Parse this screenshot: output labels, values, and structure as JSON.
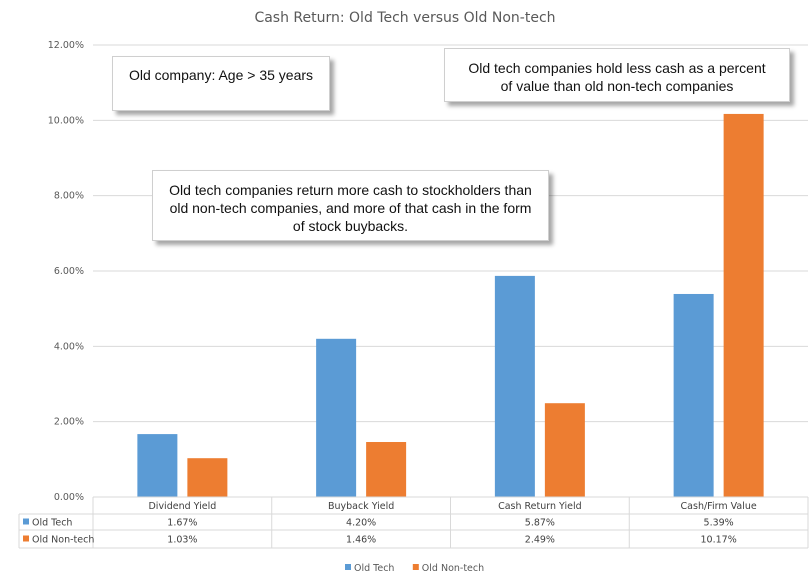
{
  "chart_data": {
    "type": "bar",
    "title": "Cash Return: Old Tech versus Old Non-tech",
    "categories": [
      "Dividend Yield",
      "Buyback Yield",
      "Cash Return Yield",
      "Cash/Firm Value"
    ],
    "series": [
      {
        "name": "Old Tech",
        "color": "#5B9BD5",
        "values": [
          1.67,
          4.2,
          5.87,
          5.39
        ],
        "labels": [
          "1.67%",
          "4.20%",
          "5.87%",
          "5.39%"
        ]
      },
      {
        "name": "Old Non-tech",
        "color": "#ED7D31",
        "values": [
          1.03,
          1.46,
          2.49,
          10.17
        ],
        "labels": [
          "1.03%",
          "1.46%",
          "2.49%",
          "10.17%"
        ]
      }
    ],
    "ylim": [
      0,
      12
    ],
    "y_ticks": [
      "0.00%",
      "2.00%",
      "4.00%",
      "6.00%",
      "8.00%",
      "10.00%",
      "12.00%"
    ],
    "grid": true,
    "legend_position": "bottom",
    "data_table": true,
    "annotations": {
      "age_note": "Old company: Age > 35 years",
      "cash_note": "Old tech companies hold less cash as a percent of value than old non-tech companies",
      "return_note": "Old tech companies return more cash to stockholders than old non-tech companies, and more of that cash in the form of stock buybacks."
    }
  }
}
